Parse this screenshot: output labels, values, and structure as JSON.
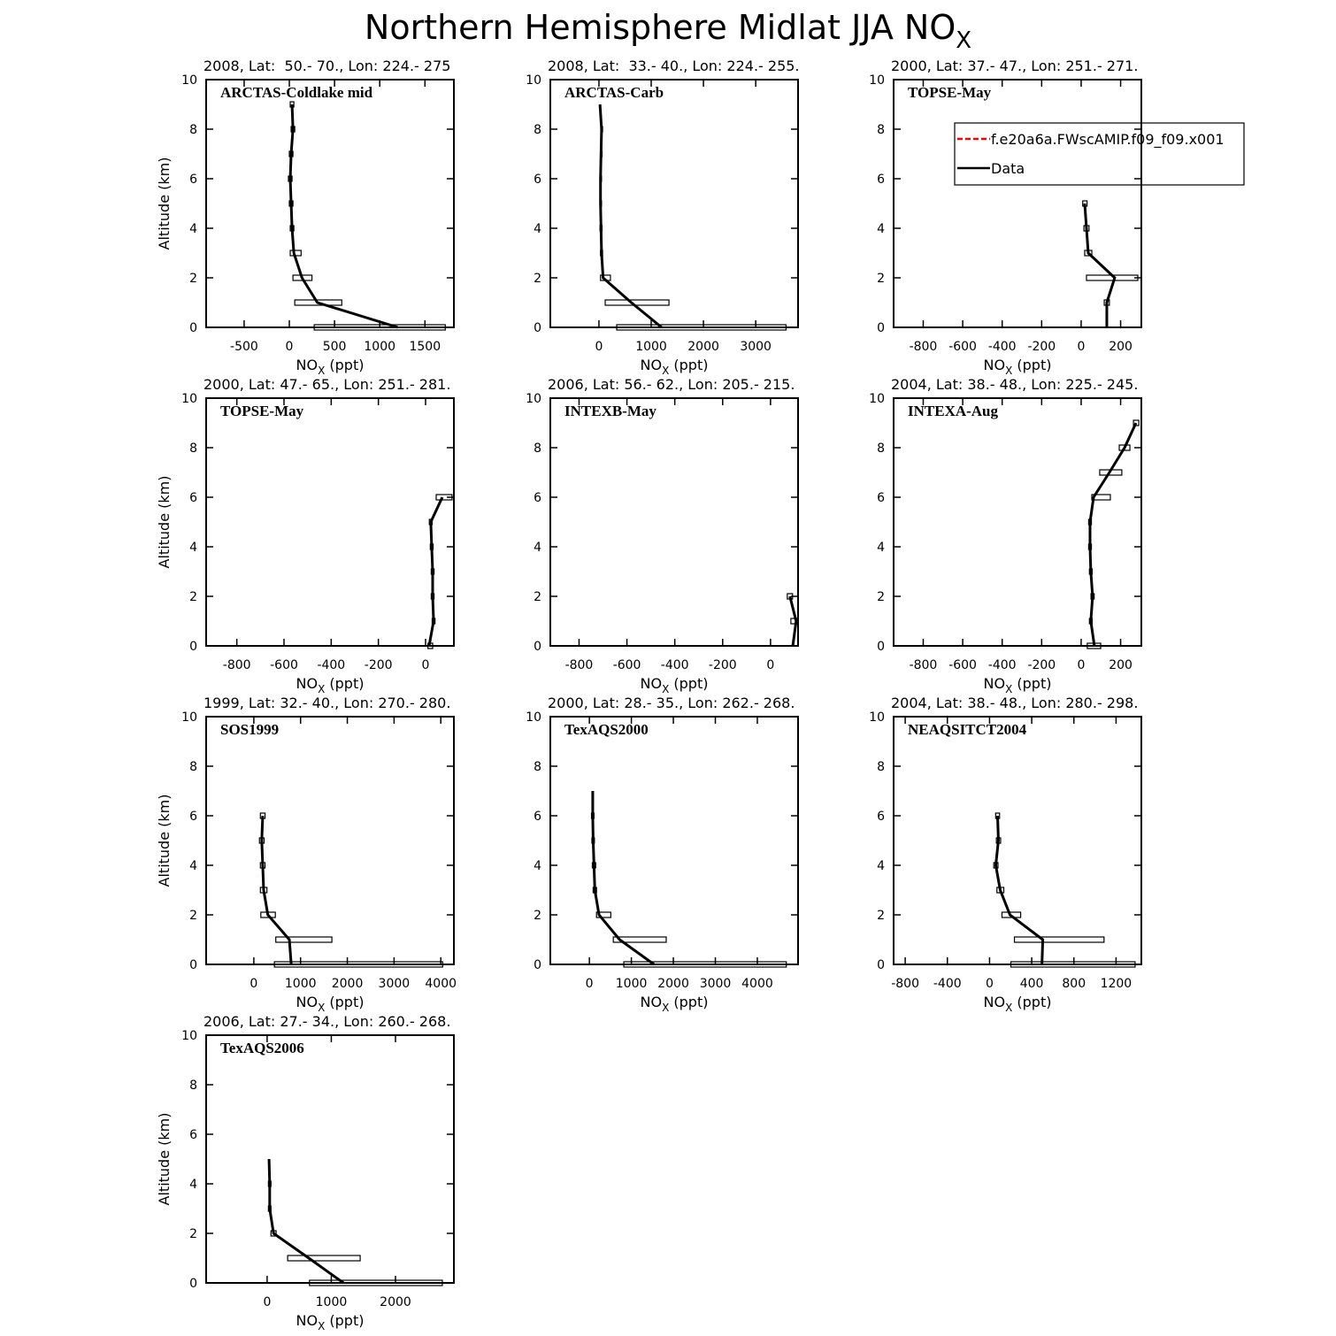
{
  "title": {
    "text": "Northern Hemisphere Midlat JJA NO",
    "subscript": "X"
  },
  "chart_data": [
    {
      "type": "line",
      "subtitle": "2008, Lat:  50.- 70., Lon: 224.- 275",
      "label": "ARCTAS-Coldlake mid",
      "ylabel": "Altitude (km)",
      "xlabel": [
        "NO",
        "X",
        " (ppt)"
      ],
      "color": "#000000",
      "altitudes": [
        0,
        1,
        2,
        3,
        4,
        5,
        6,
        7,
        8,
        9
      ],
      "values": [
        1200,
        310,
        140,
        50,
        30,
        20,
        10,
        20,
        40,
        30
      ],
      "box_low": [
        275,
        60,
        40,
        10,
        10,
        0,
        -10,
        0,
        20,
        10
      ],
      "box_high": [
        1725,
        580,
        250,
        130,
        50,
        40,
        30,
        40,
        60,
        50
      ],
      "xlim": [
        -920,
        1820
      ],
      "xticks": [
        -500,
        0,
        500,
        1000,
        1500
      ],
      "ylim": [
        0,
        10
      ],
      "yticks": [
        0,
        2,
        4,
        6,
        8,
        10
      ]
    },
    {
      "type": "line",
      "subtitle": "2008, Lat:  33.- 40., Lon: 224.- 255.",
      "label": "ARCTAS-Carb",
      "xlabel": [
        "NO",
        "X",
        " (ppt)"
      ],
      "color": "#000000",
      "altitudes": [
        0,
        1,
        2,
        3,
        4,
        5,
        6,
        7,
        8,
        9
      ],
      "values": [
        1200,
        620,
        80,
        50,
        40,
        30,
        30,
        40,
        50,
        20
      ],
      "box_low": [
        340,
        120,
        30,
        30,
        20,
        20,
        20,
        30,
        40,
        null
      ],
      "box_high": [
        3580,
        1340,
        220,
        70,
        60,
        50,
        50,
        60,
        70,
        null
      ],
      "xlim": [
        -930,
        3810
      ],
      "xticks": [
        0,
        1000,
        2000,
        3000
      ],
      "ylim": [
        0,
        10
      ],
      "yticks": [
        0,
        2,
        4,
        6,
        8,
        10
      ]
    },
    {
      "type": "line",
      "subtitle": "2000, Lat: 37.- 47., Lon: 251.- 271.",
      "label": "TOPSE-May",
      "xlabel": [
        "NO",
        "X",
        " (ppt)"
      ],
      "color": "#000000",
      "altitudes": [
        0,
        1,
        2,
        3,
        4,
        5
      ],
      "values": [
        130,
        130,
        170,
        36,
        27,
        18
      ],
      "box_low": [
        null,
        117,
        27,
        18,
        14,
        8
      ],
      "box_high": [
        null,
        143,
        287,
        54,
        40,
        30
      ],
      "xlim": [
        -950,
        305
      ],
      "xticks": [
        -800,
        -600,
        -400,
        -200,
        0,
        200
      ],
      "ylim": [
        0,
        10
      ],
      "yticks": [
        0,
        2,
        4,
        6,
        8,
        10
      ],
      "legend": [
        {
          "name": "f.e20a6a.FWscAMIP.f09_f09.x001",
          "color": "#ff0000",
          "dash": true
        },
        {
          "name": "Data",
          "color": "#000000",
          "dash": false
        }
      ]
    },
    {
      "type": "line",
      "subtitle": "2000, Lat: 47.- 65., Lon: 251.- 281.",
      "label": "TOPSE-May",
      "ylabel": "Altitude (km)",
      "xlabel": [
        "NO",
        "X",
        " (ppt)"
      ],
      "color": "#000000",
      "altitudes": [
        0,
        1,
        2,
        3,
        4,
        5,
        6
      ],
      "values": [
        15,
        34,
        30,
        30,
        26,
        22,
        71
      ],
      "box_low": [
        10,
        28,
        24,
        24,
        20,
        16,
        45
      ],
      "box_high": [
        30,
        40,
        36,
        36,
        32,
        28,
        112
      ],
      "xlim": [
        -930,
        120
      ],
      "xticks": [
        -800,
        -600,
        -400,
        -200,
        0
      ],
      "ylim": [
        0,
        10
      ],
      "yticks": [
        0,
        2,
        4,
        6,
        8,
        10
      ]
    },
    {
      "type": "line",
      "subtitle": "2006, Lat: 56.- 62., Lon: 205.- 215.",
      "label": "INTEXB-May",
      "xlabel": [
        "NO",
        "X",
        " (ppt)"
      ],
      "color": "#000000",
      "altitudes": [
        0,
        1,
        2
      ],
      "values": [
        93,
        107,
        81
      ],
      "box_low": [
        null,
        85,
        70
      ],
      "box_high": [
        null,
        115,
        92
      ],
      "xlim": [
        -920,
        115
      ],
      "xticks": [
        -800,
        -600,
        -400,
        -200,
        0
      ],
      "ylim": [
        0,
        10
      ],
      "yticks": [
        0,
        2,
        4,
        6,
        8,
        10
      ]
    },
    {
      "type": "line",
      "subtitle": "2004, Lat: 38.- 48., Lon: 225.- 245.",
      "label": "INTEXA-Aug",
      "xlabel": [
        "NO",
        "X",
        " (ppt)"
      ],
      "color": "#000000",
      "altitudes": [
        0,
        1,
        2,
        3,
        4,
        5,
        6,
        7,
        8,
        9
      ],
      "values": [
        67,
        49,
        58,
        49,
        45,
        45,
        63,
        143,
        220,
        278
      ],
      "box_low": [
        31,
        42,
        50,
        42,
        38,
        38,
        54,
        94,
        193,
        265
      ],
      "box_high": [
        99,
        56,
        66,
        56,
        52,
        52,
        148,
        206,
        247,
        292
      ],
      "xlim": [
        -950,
        305
      ],
      "xticks": [
        -800,
        -600,
        -400,
        -200,
        0,
        200
      ],
      "ylim": [
        0,
        10
      ],
      "yticks": [
        0,
        2,
        4,
        6,
        8,
        10
      ]
    },
    {
      "type": "line",
      "subtitle": "1999, Lat: 32.- 40., Lon: 270.- 280.",
      "label": "SOS1999",
      "ylabel": "Altitude (km)",
      "xlabel": [
        "NO",
        "X",
        " (ppt)"
      ],
      "color": "#000000",
      "altitudes": [
        0,
        1,
        2,
        3,
        4,
        5,
        6
      ],
      "values": [
        800,
        760,
        300,
        210,
        190,
        170,
        190
      ],
      "box_low": [
        440,
        470,
        150,
        140,
        140,
        120,
        140
      ],
      "box_high": [
        4040,
        1670,
        460,
        280,
        240,
        220,
        240
      ],
      "xlim": [
        -1020,
        4280
      ],
      "xticks": [
        0,
        1000,
        2000,
        3000,
        4000
      ],
      "ylim": [
        0,
        10
      ],
      "yticks": [
        0,
        2,
        4,
        6,
        8,
        10
      ]
    },
    {
      "type": "line",
      "subtitle": "2000, Lat: 28.- 35., Lon: 262.- 268.",
      "label": "TexAQS2000",
      "xlabel": [
        "NO",
        "X",
        " (ppt)"
      ],
      "color": "#000000",
      "altitudes": [
        0,
        1,
        2,
        3,
        4,
        5,
        6,
        7
      ],
      "values": [
        1540,
        720,
        230,
        130,
        110,
        90,
        80,
        80
      ],
      "box_low": [
        820,
        570,
        170,
        90,
        70,
        60,
        50,
        null
      ],
      "box_high": [
        4690,
        1830,
        510,
        170,
        150,
        120,
        110,
        null
      ],
      "xlim": [
        -930,
        4970
      ],
      "xticks": [
        0,
        1000,
        2000,
        3000,
        4000
      ],
      "ylim": [
        0,
        10
      ],
      "yticks": [
        0,
        2,
        4,
        6,
        8,
        10
      ]
    },
    {
      "type": "line",
      "subtitle": "2004, Lat: 38.- 48., Lon: 280.- 298.",
      "label": "NEAQSITCT2004",
      "xlabel": [
        "NO",
        "X",
        " (ppt)"
      ],
      "color": "#000000",
      "altitudes": [
        0,
        1,
        2,
        3,
        4,
        5,
        6
      ],
      "values": [
        497,
        505,
        194,
        101,
        59,
        84,
        76
      ],
      "box_low": [
        202,
        236,
        118,
        70,
        40,
        65,
        58
      ],
      "box_high": [
        1381,
        1086,
        295,
        135,
        80,
        105,
        95
      ],
      "xlim": [
        -910,
        1440
      ],
      "xticks": [
        -800,
        -400,
        0,
        400,
        800,
        1200
      ],
      "ylim": [
        0,
        10
      ],
      "yticks": [
        0,
        2,
        4,
        6,
        8,
        10
      ]
    },
    {
      "type": "line",
      "subtitle": "2006, Lat: 27.- 34., Lon: 260.- 268.",
      "label": "TexAQS2006",
      "ylabel": "Altitude (km)",
      "xlabel": [
        "NO",
        "X",
        " (ppt)"
      ],
      "color": "#000000",
      "altitudes": [
        0,
        1,
        2,
        3,
        4,
        5
      ],
      "values": [
        1190,
        650,
        100,
        40,
        40,
        30
      ],
      "box_low": [
        660,
        320,
        60,
        20,
        20,
        null
      ],
      "box_high": [
        2730,
        1450,
        140,
        60,
        60,
        null
      ],
      "xlim": [
        -950,
        2910
      ],
      "xticks": [
        0,
        1000,
        2000
      ],
      "ylim": [
        0,
        10
      ],
      "yticks": [
        0,
        2,
        4,
        6,
        8,
        10
      ]
    }
  ]
}
